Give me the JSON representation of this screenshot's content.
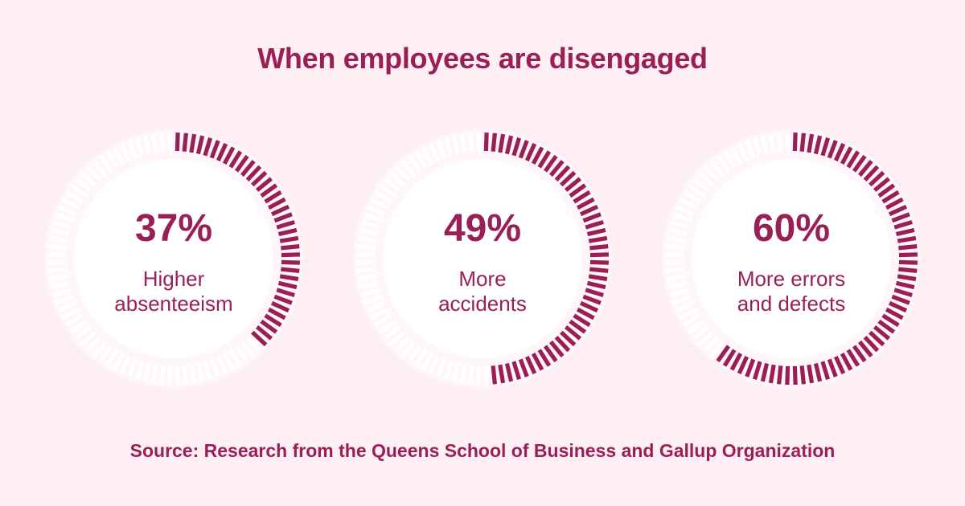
{
  "header": {
    "title": "When employees are disengaged"
  },
  "footer": {
    "source": "Source: Research from the Queens School of Business and Gallup Organization"
  },
  "colors": {
    "accent": "#9b1f57",
    "track": "#ffffff",
    "background": "#fdeff3",
    "inner": "#ffffff"
  },
  "chart_data": {
    "type": "pie",
    "title": "When employees are disengaged",
    "categories": [
      "Higher absenteeism",
      "More accidents",
      "More errors and defects"
    ],
    "values": [
      37,
      49,
      60
    ],
    "units": "%",
    "items": [
      {
        "value": 37,
        "value_label": "37%",
        "label_lines": [
          "Higher",
          "absenteeism"
        ]
      },
      {
        "value": 49,
        "value_label": "49%",
        "label_lines": [
          "More",
          "accidents"
        ]
      },
      {
        "value": 60,
        "value_label": "60%",
        "label_lines": [
          "More errors",
          "and defects"
        ]
      }
    ]
  }
}
